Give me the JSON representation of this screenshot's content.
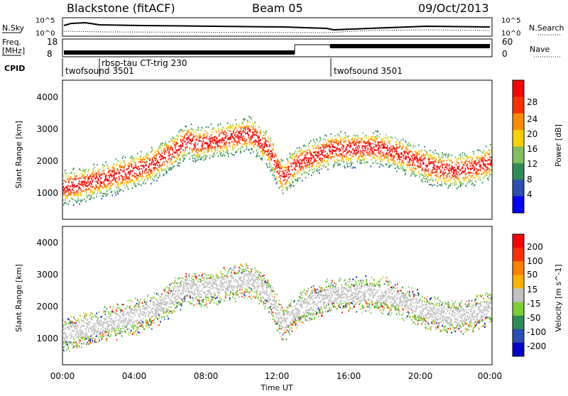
{
  "header": {
    "station": "Blackstone (fitACF)",
    "beam": "Beam 05",
    "date": "09/Oct/2013"
  },
  "top_panels": {
    "nsky_label": "N.Sky",
    "nsky_ticks": [
      "10^5",
      "10^0"
    ],
    "nsearch_label": "N.Search",
    "nsearch_ticks": [
      "10^5",
      "10^0"
    ],
    "freq_label_1": "Freq.",
    "freq_label_2": "[MHz]",
    "freq_ticks": [
      "18",
      "8"
    ],
    "nave_label": "Nave",
    "nave_ticks": [
      "60",
      "0"
    ],
    "cpid_label": "CPID",
    "cpid_entries": [
      {
        "name": "twofsound 3501",
        "start": 0.0
      },
      {
        "name": "rbsp-tau CT-trig 230",
        "start": 2.0
      },
      {
        "name": "twofsound 3501",
        "start": 15.0
      }
    ]
  },
  "colors": {
    "power_scale": [
      "#0000ff",
      "#2a4fb0",
      "#2e8b57",
      "#80c060",
      "#ffd000",
      "#ff8c00",
      "#ff3000",
      "#ff0000"
    ],
    "velocity_scale": [
      "#0000cc",
      "#2a4fb0",
      "#2e8b57",
      "#7ccd3a",
      "#c0c0c0",
      "#ffb000",
      "#ff7f00",
      "#ff3000",
      "#ff0000"
    ]
  },
  "chart_data": [
    {
      "type": "heatmap",
      "name": "power",
      "ylabel": "Slant Range [km]",
      "xlabel": "",
      "colorbar_label": "Power [dB]",
      "colorbar_ticks": [
        "28",
        "24",
        "20",
        "16",
        "12",
        "8",
        "4"
      ],
      "ylim": [
        0,
        4500
      ],
      "yticks": [
        "4000",
        "3000",
        "2000",
        "1000"
      ],
      "xlim": [
        0,
        24
      ],
      "echo_band": {
        "time": [
          0,
          1,
          2,
          3,
          4,
          5,
          6,
          7,
          7.5,
          10.5,
          11.5,
          12.3,
          13,
          15,
          16,
          17,
          18,
          19,
          20,
          21,
          22,
          23,
          24
        ],
        "range": [
          1050,
          1150,
          1300,
          1450,
          1600,
          1800,
          2150,
          2600,
          2450,
          2800,
          2300,
          1350,
          1800,
          2300,
          2300,
          2350,
          2300,
          2100,
          1850,
          1650,
          1600,
          1700,
          1900
        ]
      }
    },
    {
      "type": "heatmap",
      "name": "velocity",
      "ylabel": "Slant Range [km]",
      "xlabel": "Time UT",
      "colorbar_label": "Velocity [m s^-1]",
      "colorbar_ticks": [
        "200",
        "100",
        "50",
        "15",
        "-15",
        "-50",
        "-100",
        "-200"
      ],
      "ylim": [
        0,
        4500
      ],
      "yticks": [
        "4000",
        "3000",
        "2000",
        "1000"
      ],
      "xlim": [
        0,
        24
      ],
      "xticks": [
        "00:00",
        "04:00",
        "08:00",
        "12:00",
        "16:00",
        "20:00",
        "00:00"
      ]
    }
  ]
}
